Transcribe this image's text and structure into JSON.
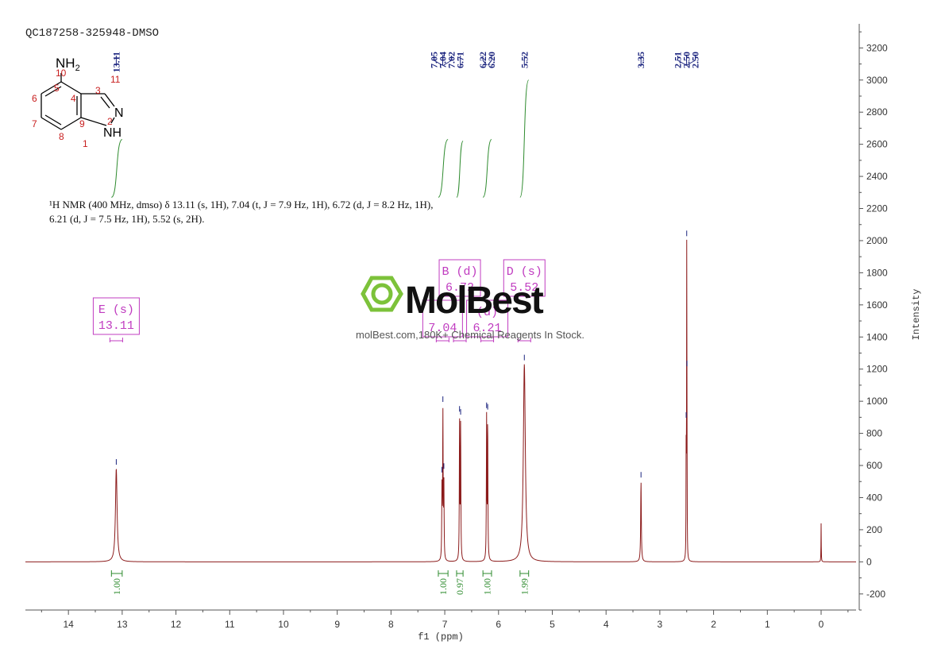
{
  "sample_id": "QC187258-325948-DMSO",
  "structure": {
    "nh2": "NH",
    "nh2_sub": "2",
    "nh": "NH",
    "n": "N",
    "atom_numbers": [
      "1",
      "2",
      "3",
      "4",
      "5",
      "6",
      "7",
      "8",
      "9",
      "10",
      "11"
    ]
  },
  "description": {
    "line1": "¹H NMR (400 MHz, dmso) δ 13.11 (s, 1H), 7.04 (t, J = 7.9 Hz, 1H), 6.72 (d, J = 8.2 Hz, 1H),",
    "line2": "6.21 (d, J = 7.5 Hz, 1H), 5.52 (s, 2H)."
  },
  "watermark": {
    "brand": "MolBest",
    "tagline": "molBest.com,180K+ Chemical Reagents In Stock."
  },
  "colors": {
    "spectrum": "#8b1a1a",
    "integral": "#2e8b2e",
    "peak_label": "#1a237e",
    "multiplet_box": "#c03cc0",
    "axis": "#555555",
    "watermark_green": "#7cc23a"
  },
  "chart_data": {
    "type": "line",
    "title": "",
    "xlabel": "f1 (ppm)",
    "ylabel": "Intensity",
    "xlim": [
      14.8,
      -0.65
    ],
    "ylim": [
      -300,
      3350
    ],
    "x_ticks": [
      14,
      13,
      12,
      11,
      10,
      9,
      8,
      7,
      6,
      5,
      4,
      3,
      2,
      1,
      0
    ],
    "y_ticks": [
      -200,
      0,
      200,
      400,
      600,
      800,
      1000,
      1200,
      1400,
      1600,
      1800,
      2000,
      2200,
      2400,
      2600,
      2800,
      3000,
      3200
    ],
    "peaks": [
      {
        "ppm": 13.11,
        "height": 580,
        "width": 0.018
      },
      {
        "ppm": 7.052,
        "height": 450,
        "width": 0.005
      },
      {
        "ppm": 7.035,
        "height": 900,
        "width": 0.005
      },
      {
        "ppm": 7.017,
        "height": 480,
        "width": 0.005
      },
      {
        "ppm": 6.725,
        "height": 860,
        "width": 0.005
      },
      {
        "ppm": 6.705,
        "height": 840,
        "width": 0.005
      },
      {
        "ppm": 6.222,
        "height": 880,
        "width": 0.005
      },
      {
        "ppm": 6.202,
        "height": 870,
        "width": 0.005
      },
      {
        "ppm": 5.52,
        "height": 1230,
        "width": 0.022
      },
      {
        "ppm": 3.35,
        "height": 500,
        "width": 0.007
      },
      {
        "ppm": 2.51,
        "height": 700,
        "width": 0.003
      },
      {
        "ppm": 2.5,
        "height": 1760,
        "width": 0.003
      },
      {
        "ppm": 2.495,
        "height": 700,
        "width": 0.003
      },
      {
        "ppm": 0.0,
        "height": 240,
        "width": 0.003
      }
    ],
    "peak_labels": [
      "13.11",
      "7.05",
      "7.04",
      "7.02",
      "6.71",
      "6.22",
      "6.20",
      "5.52",
      "3.35",
      "2.51",
      "2.50",
      "2.50"
    ],
    "peak_label_ppm": [
      13.11,
      7.05,
      7.04,
      7.02,
      6.71,
      6.22,
      6.2,
      5.52,
      3.35,
      2.51,
      2.5,
      2.5
    ],
    "integrals": [
      {
        "from": 13.2,
        "to": 13.0,
        "value": "1.00",
        "y_start": 2270,
        "y_end": 2630
      },
      {
        "from": 7.12,
        "to": 6.94,
        "value": "1.00",
        "y_start": 2270,
        "y_end": 2630
      },
      {
        "from": 6.78,
        "to": 6.66,
        "value": "0.97",
        "y_start": 2270,
        "y_end": 2620
      },
      {
        "from": 6.29,
        "to": 6.13,
        "value": "1.00",
        "y_start": 2270,
        "y_end": 2630
      },
      {
        "from": 5.6,
        "to": 5.44,
        "value": "1.99",
        "y_start": 2270,
        "y_end": 3000
      }
    ],
    "multiplets": [
      {
        "letter": "E (s)",
        "shift": "13.11",
        "ppm": 13.11
      },
      {
        "letter": "",
        "shift": "7.04",
        "ppm": 7.04
      },
      {
        "letter": "B (d)",
        "shift": "6.72",
        "ppm": 6.72
      },
      {
        "letter": "(d)",
        "shift": "6.21",
        "ppm": 6.21
      },
      {
        "letter": "D (s)",
        "shift": "5.52",
        "ppm": 5.52
      }
    ]
  }
}
